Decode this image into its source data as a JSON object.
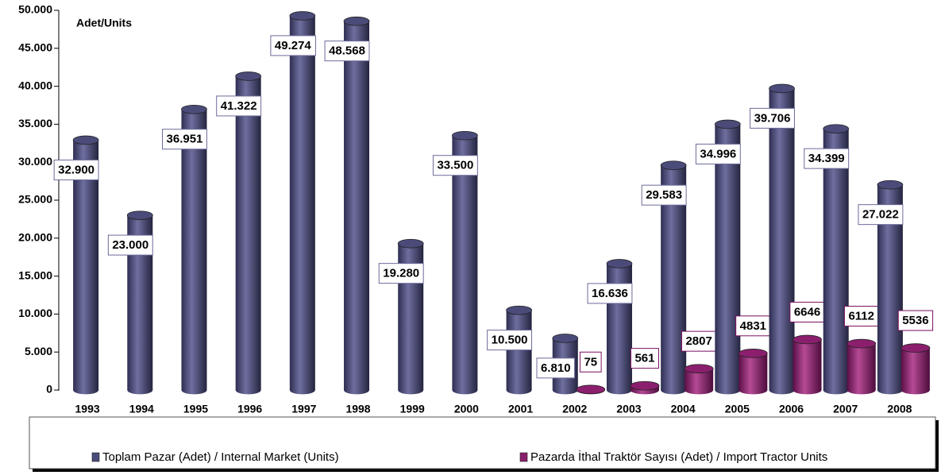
{
  "chart_data": {
    "type": "bar",
    "y_label": "Adet/Units",
    "categories": [
      "1993",
      "1994",
      "1995",
      "1996",
      "1997",
      "1998",
      "1999",
      "2000",
      "2001",
      "2002",
      "2003",
      "2004",
      "2005",
      "2006",
      "2007",
      "2008"
    ],
    "series": [
      {
        "name": "Toplam Pazar (Adet) / Internal Market (Units)",
        "color": "#4b4b7a",
        "values": [
          32900,
          23000,
          36951,
          41322,
          49274,
          48568,
          19280,
          33500,
          10500,
          6810,
          16636,
          29583,
          34996,
          39706,
          34399,
          27022
        ],
        "value_labels": [
          "32.900",
          "23.000",
          "36.951",
          "41.322",
          "49.274",
          "48.568",
          "19.280",
          "33.500",
          "10.500",
          "6.810",
          "16.636",
          "29.583",
          "34.996",
          "39.706",
          "34.399",
          "27.022"
        ]
      },
      {
        "name": "Pazarda İthal Traktör Sayısı (Adet) / Import Tractor Units",
        "color": "#8b1f6e",
        "values": [
          null,
          null,
          null,
          null,
          null,
          null,
          null,
          null,
          null,
          75,
          561,
          2807,
          4831,
          6646,
          6112,
          5536
        ]
      }
    ],
    "ylim": [
      0,
      50000
    ],
    "yticks": [
      0,
      {
        "value": 5000,
        "label": "5.000"
      },
      {
        "value": 10000,
        "label": "10.000"
      },
      {
        "value": 15000,
        "label": "15.000"
      },
      {
        "value": 20000,
        "label": "20.000"
      },
      {
        "value": 25000,
        "label": "25.000"
      },
      {
        "value": 30000,
        "label": "30.000"
      },
      {
        "value": 35000,
        "label": "35.000"
      },
      {
        "value": 40000,
        "label": "40.000"
      },
      {
        "value": 45000,
        "label": "45.000"
      },
      {
        "value": 50000,
        "label": "50.000"
      }
    ],
    "legend": "bottom"
  }
}
